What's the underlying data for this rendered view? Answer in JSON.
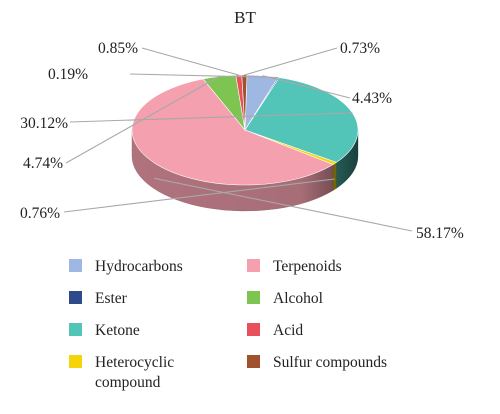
{
  "chart_data": {
    "type": "pie",
    "title": "BT",
    "style": "3d",
    "legend_position": "bottom",
    "categories": [
      "Hydrocarbons",
      "Ester",
      "Ketone",
      "Heterocyclic compound",
      "Terpenoids",
      "Alcohol",
      "Acid",
      "Sulfur compounds"
    ],
    "values": [
      4.43,
      0.19,
      30.12,
      0.76,
      58.17,
      4.74,
      0.85,
      0.73
    ],
    "labels": [
      "4.43%",
      "0.19%",
      "30.12%",
      "0.76%",
      "58.17%",
      "4.74%",
      "0.85%",
      "0.73%"
    ],
    "colors": [
      "#9fb7e3",
      "#2e4a8a",
      "#52c4b8",
      "#f5d50a",
      "#f4a0ae",
      "#7dc550",
      "#e8505b",
      "#a0522d"
    ],
    "legend": [
      {
        "label": "Hydrocarbons",
        "color": "#9fb7e3"
      },
      {
        "label": "Terpenoids",
        "color": "#f4a0ae"
      },
      {
        "label": "Ester",
        "color": "#2e4a8a"
      },
      {
        "label": "Alcohol",
        "color": "#7dc550"
      },
      {
        "label": "Ketone",
        "color": "#52c4b8"
      },
      {
        "label": "Acid",
        "color": "#e8505b"
      },
      {
        "label": "Heterocyclic compound",
        "color": "#f5d50a"
      },
      {
        "label": "Sulfur compounds",
        "color": "#a0522d"
      }
    ]
  }
}
